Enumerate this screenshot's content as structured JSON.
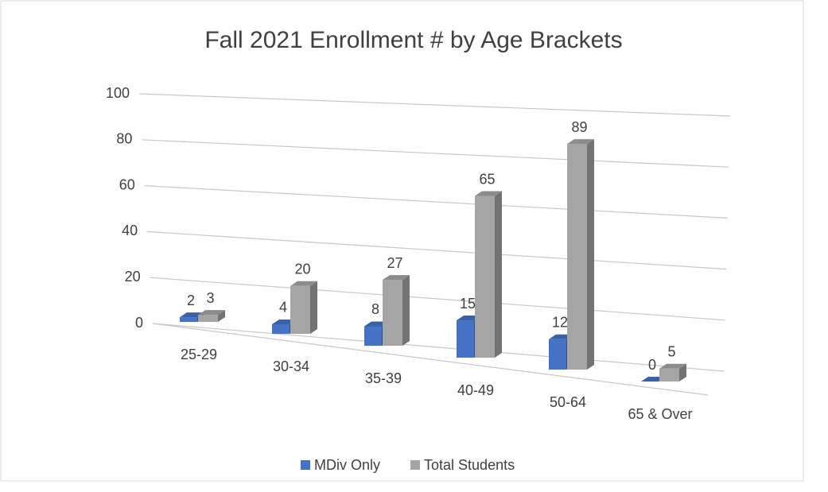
{
  "chart_data": {
    "type": "bar3d",
    "title": "Fall 2021 Enrollment # by Age Brackets",
    "categories": [
      "25-29",
      "30-34",
      "35-39",
      "40-49",
      "50-64",
      "65 & Over"
    ],
    "series": [
      {
        "name": "MDiv Only",
        "color": "#4472c4",
        "values": [
          2,
          4,
          8,
          15,
          12,
          0
        ]
      },
      {
        "name": "Total Students",
        "color": "#a5a5a5",
        "values": [
          3,
          20,
          27,
          65,
          89,
          5
        ]
      }
    ],
    "ylim": [
      0,
      100
    ],
    "yticks": [
      0,
      20,
      40,
      60,
      80,
      100
    ],
    "grid": true,
    "legend": "bottom"
  }
}
